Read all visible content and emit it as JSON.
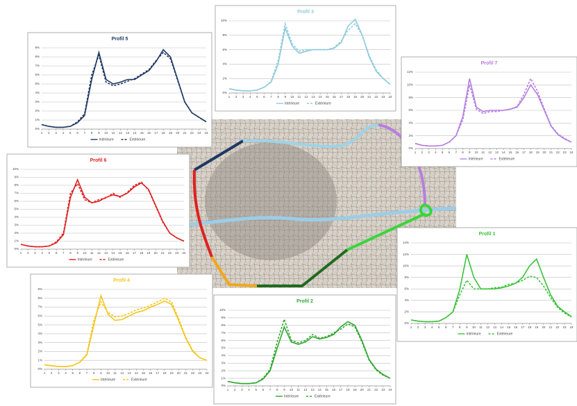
{
  "chart_data": [
    {
      "type": "line",
      "title": "Profil 5",
      "x": [
        1,
        2,
        3,
        4,
        5,
        6,
        7,
        8,
        9,
        10,
        11,
        12,
        13,
        14,
        15,
        16,
        17,
        18,
        19,
        20,
        21,
        22,
        23,
        24
      ],
      "xlim": [
        1,
        24
      ],
      "xticks": [
        1,
        2,
        3,
        4,
        5,
        6,
        7,
        8,
        9,
        10,
        11,
        12,
        13,
        14,
        15,
        16,
        17,
        18,
        19,
        20,
        21,
        22,
        23,
        24
      ],
      "ylim": [
        0,
        9
      ],
      "yticks": [
        {
          "value": 0,
          "label": "0%"
        },
        {
          "value": 1,
          "label": "1%"
        },
        {
          "value": 2,
          "label": "2%"
        },
        {
          "value": 3,
          "label": "3%"
        },
        {
          "value": 4,
          "label": "4%"
        },
        {
          "value": 5,
          "label": "5%"
        },
        {
          "value": 6,
          "label": "6%"
        },
        {
          "value": 7,
          "label": "7%"
        },
        {
          "value": 8,
          "label": "8%"
        },
        {
          "value": 9,
          "label": "9%"
        }
      ],
      "grid": true,
      "series": [
        {
          "name": "Intérieure",
          "color": "#1f3864",
          "linestyle": "solid",
          "values": [
            0.5,
            0.3,
            0.2,
            0.2,
            0.3,
            0.7,
            1.5,
            5.5,
            8.5,
            5.5,
            5,
            5.2,
            5.5,
            5.5,
            6,
            6.5,
            7.5,
            8.8,
            8,
            5.5,
            3,
            1.8,
            1.3,
            0.8
          ]
        },
        {
          "name": "Extérieure",
          "color": "#1f3864",
          "linestyle": "dashed",
          "values": [
            0.5,
            0.3,
            0.2,
            0.2,
            0.3,
            0.8,
            1.7,
            6,
            8.2,
            5.2,
            4.8,
            5,
            5.3,
            5.6,
            6.1,
            6.6,
            7.6,
            8.5,
            7.8,
            5.4,
            3,
            1.8,
            1.3,
            0.8
          ]
        }
      ]
    },
    {
      "type": "line",
      "title": "Profil 3",
      "x": [
        1,
        2,
        3,
        4,
        5,
        6,
        7,
        8,
        9,
        10,
        11,
        12,
        13,
        14,
        15,
        16,
        17,
        18,
        19,
        20,
        21,
        22,
        23,
        24
      ],
      "xlim": [
        1,
        24
      ],
      "xticks": [
        1,
        2,
        3,
        4,
        5,
        6,
        7,
        8,
        9,
        10,
        11,
        12,
        13,
        14,
        15,
        16,
        17,
        18,
        19,
        20,
        21,
        22,
        23,
        24
      ],
      "ylim": [
        0,
        10
      ],
      "yticks": [
        {
          "value": 0,
          "label": "0%"
        },
        {
          "value": 2,
          "label": "2%"
        },
        {
          "value": 4,
          "label": "4%"
        },
        {
          "value": 6,
          "label": "6%"
        },
        {
          "value": 8,
          "label": "8%"
        },
        {
          "value": 10,
          "label": "10%"
        }
      ],
      "grid": true,
      "series": [
        {
          "name": "Intérieure",
          "color": "#8fcbdc",
          "linestyle": "solid",
          "values": [
            0.6,
            0.4,
            0.3,
            0.3,
            0.4,
            0.8,
            1.5,
            4,
            9,
            6.5,
            5.5,
            5.8,
            6,
            6,
            6,
            6.2,
            7,
            9.3,
            10.2,
            8,
            5,
            3,
            2,
            1.2
          ]
        },
        {
          "name": "Extérieure",
          "color": "#8fcbdc",
          "linestyle": "dashed",
          "values": [
            0.6,
            0.4,
            0.3,
            0.3,
            0.4,
            0.8,
            1.6,
            4.5,
            9.6,
            6.8,
            5.8,
            6,
            6,
            6,
            6,
            6.3,
            7.2,
            8.7,
            9.6,
            8,
            5.2,
            3.2,
            2,
            1.2
          ]
        }
      ]
    },
    {
      "type": "line",
      "title": "Profil 7",
      "x": [
        1,
        2,
        3,
        4,
        5,
        6,
        7,
        8,
        9,
        10,
        11,
        12,
        13,
        14,
        15,
        16,
        17,
        18,
        19,
        20,
        21,
        22,
        23,
        24
      ],
      "xlim": [
        1,
        24
      ],
      "xticks": [
        1,
        2,
        3,
        4,
        5,
        6,
        7,
        8,
        9,
        10,
        11,
        12,
        13,
        14,
        15,
        16,
        17,
        18,
        19,
        20,
        21,
        22,
        23,
        24
      ],
      "ylim": [
        0,
        12
      ],
      "yticks": [
        {
          "value": 0,
          "label": "0%"
        },
        {
          "value": 2,
          "label": "2%"
        },
        {
          "value": 4,
          "label": "4%"
        },
        {
          "value": 6,
          "label": "6%"
        },
        {
          "value": 8,
          "label": "8%"
        },
        {
          "value": 10,
          "label": "10%"
        },
        {
          "value": 12,
          "label": "12%"
        }
      ],
      "grid": true,
      "series": [
        {
          "name": "Intérieure",
          "color": "#b57ee0",
          "linestyle": "solid",
          "values": [
            0.8,
            0.5,
            0.4,
            0.4,
            0.5,
            1,
            2,
            5,
            11,
            6.5,
            5.8,
            6,
            6,
            6,
            6.2,
            6.5,
            8,
            10,
            8.5,
            6,
            3.5,
            2.2,
            1.5,
            1
          ]
        },
        {
          "name": "Extérieure",
          "color": "#b57ee0",
          "linestyle": "dashed",
          "values": [
            0.8,
            0.5,
            0.4,
            0.4,
            0.5,
            1,
            2,
            4.5,
            10,
            6.2,
            5.5,
            5.8,
            5.8,
            6,
            6.2,
            6.6,
            8.5,
            11,
            9,
            6.2,
            3.6,
            2.3,
            1.6,
            1
          ]
        }
      ]
    },
    {
      "type": "line",
      "title": "Profil 6",
      "x": [
        1,
        2,
        3,
        4,
        5,
        6,
        7,
        8,
        9,
        10,
        11,
        12,
        13,
        14,
        15,
        16,
        17,
        18,
        19,
        20,
        21,
        22,
        23,
        24
      ],
      "xlim": [
        1,
        24
      ],
      "xticks": [
        1,
        2,
        3,
        4,
        5,
        6,
        7,
        8,
        9,
        10,
        11,
        12,
        13,
        14,
        15,
        16,
        17,
        18,
        19,
        20,
        21,
        22,
        23,
        24
      ],
      "ylim": [
        0,
        10
      ],
      "yticks": [
        {
          "value": 0,
          "label": "0%"
        },
        {
          "value": 1,
          "label": "1%"
        },
        {
          "value": 2,
          "label": "2%"
        },
        {
          "value": 3,
          "label": "3%"
        },
        {
          "value": 4,
          "label": "4%"
        },
        {
          "value": 5,
          "label": "5%"
        },
        {
          "value": 6,
          "label": "6%"
        },
        {
          "value": 7,
          "label": "7%"
        },
        {
          "value": 8,
          "label": "8%"
        },
        {
          "value": 9,
          "label": "9%"
        },
        {
          "value": 10,
          "label": "10%"
        }
      ],
      "grid": true,
      "series": [
        {
          "name": "Intérieure",
          "color": "#e02020",
          "linestyle": "solid",
          "values": [
            0.6,
            0.4,
            0.3,
            0.3,
            0.4,
            0.8,
            1.8,
            6.5,
            8.7,
            6.5,
            5.8,
            6,
            6.5,
            6.8,
            6.6,
            7,
            7.8,
            8.3,
            7.5,
            5.5,
            3.5,
            2,
            1.4,
            1
          ]
        },
        {
          "name": "Extérieure",
          "color": "#e02020",
          "linestyle": "dashed",
          "values": [
            0.6,
            0.4,
            0.3,
            0.3,
            0.4,
            0.9,
            2,
            7,
            8.2,
            6.2,
            5.8,
            6.2,
            6.4,
            7,
            6.5,
            7.1,
            8,
            8.4,
            7.4,
            5.4,
            3.4,
            2,
            1.4,
            1
          ]
        }
      ]
    },
    {
      "type": "line",
      "title": "Profil 1",
      "x": [
        1,
        2,
        3,
        4,
        5,
        6,
        7,
        8,
        9,
        10,
        11,
        12,
        13,
        14,
        15,
        16,
        17,
        18,
        19,
        20,
        21,
        22,
        23,
        24
      ],
      "xlim": [
        1,
        24
      ],
      "xticks": [
        1,
        2,
        3,
        4,
        5,
        6,
        7,
        8,
        9,
        10,
        11,
        12,
        13,
        14,
        15,
        16,
        17,
        18,
        19,
        20,
        21,
        22,
        23,
        24
      ],
      "ylim": [
        0,
        14
      ],
      "yticks": [
        {
          "value": 0,
          "label": "0%"
        },
        {
          "value": 2,
          "label": "2%"
        },
        {
          "value": 4,
          "label": "4%"
        },
        {
          "value": 6,
          "label": "6%"
        },
        {
          "value": 8,
          "label": "8%"
        },
        {
          "value": 10,
          "label": "10%"
        },
        {
          "value": 12,
          "label": "12%"
        },
        {
          "value": 14,
          "label": "14%"
        }
      ],
      "grid": true,
      "series": [
        {
          "name": "Intérieure",
          "color": "#39c239",
          "linestyle": "solid",
          "values": [
            0.6,
            0.4,
            0.3,
            0.3,
            0.4,
            1,
            2,
            6,
            12,
            8,
            6,
            6,
            6,
            6.2,
            6.5,
            7,
            8,
            10,
            11.2,
            8,
            5,
            3,
            2,
            1.2
          ]
        },
        {
          "name": "Extérieure",
          "color": "#39c239",
          "linestyle": "dashed",
          "values": [
            0.6,
            0.4,
            0.3,
            0.3,
            0.4,
            1,
            2,
            5,
            7.5,
            6,
            6,
            6,
            6.2,
            6.3,
            6.8,
            7,
            7.5,
            8.2,
            8,
            6.5,
            4.5,
            2.8,
            1.8,
            1.1
          ]
        }
      ]
    },
    {
      "type": "line",
      "title": "Profil 4",
      "x": [
        1,
        2,
        3,
        4,
        5,
        6,
        7,
        8,
        9,
        10,
        11,
        12,
        13,
        14,
        15,
        16,
        17,
        18,
        19,
        20,
        21,
        22,
        23,
        24
      ],
      "xlim": [
        1,
        24
      ],
      "xticks": [
        1,
        2,
        3,
        4,
        5,
        6,
        7,
        8,
        9,
        10,
        11,
        12,
        13,
        14,
        15,
        16,
        17,
        18,
        19,
        20,
        21,
        22,
        23,
        24
      ],
      "ylim": [
        0,
        9
      ],
      "yticks": [
        {
          "value": 0,
          "label": "0%"
        },
        {
          "value": 1,
          "label": "1%"
        },
        {
          "value": 2,
          "label": "2%"
        },
        {
          "value": 3,
          "label": "3%"
        },
        {
          "value": 4,
          "label": "4%"
        },
        {
          "value": 5,
          "label": "5%"
        },
        {
          "value": 6,
          "label": "6%"
        },
        {
          "value": 7,
          "label": "7%"
        },
        {
          "value": 8,
          "label": "8%"
        },
        {
          "value": 9,
          "label": "9%"
        }
      ],
      "grid": true,
      "series": [
        {
          "name": "Intérieure",
          "color": "#f5c518",
          "linestyle": "solid",
          "values": [
            0.5,
            0.4,
            0.3,
            0.3,
            0.4,
            0.8,
            1.6,
            5,
            8.3,
            6.2,
            5.5,
            5.6,
            6,
            6.4,
            6.6,
            7,
            7.3,
            7.7,
            7.3,
            5.5,
            3.5,
            2,
            1.3,
            1
          ]
        },
        {
          "name": "Extérieure",
          "color": "#f5c518",
          "linestyle": "dashed",
          "values": [
            0.5,
            0.4,
            0.3,
            0.3,
            0.4,
            0.8,
            1.7,
            5.5,
            7.6,
            6.4,
            5.9,
            6,
            6.3,
            6.7,
            6.9,
            7.2,
            7.6,
            8,
            7.6,
            5.7,
            3.6,
            2.1,
            1.3,
            1
          ]
        }
      ]
    },
    {
      "type": "line",
      "title": "Profil 2",
      "x": [
        1,
        2,
        3,
        4,
        5,
        6,
        7,
        8,
        9,
        10,
        11,
        12,
        13,
        14,
        15,
        16,
        17,
        18,
        19,
        20,
        21,
        22,
        23,
        24
      ],
      "xlim": [
        1,
        24
      ],
      "xticks": [
        1,
        2,
        3,
        4,
        5,
        6,
        7,
        8,
        9,
        10,
        11,
        12,
        13,
        14,
        15,
        16,
        17,
        18,
        19,
        20,
        21,
        22,
        23,
        24
      ],
      "ylim": [
        0,
        10
      ],
      "yticks": [
        {
          "value": 0,
          "label": "0%"
        },
        {
          "value": 1,
          "label": "1%"
        },
        {
          "value": 2,
          "label": "2%"
        },
        {
          "value": 3,
          "label": "3%"
        },
        {
          "value": 4,
          "label": "4%"
        },
        {
          "value": 5,
          "label": "5%"
        },
        {
          "value": 6,
          "label": "6%"
        },
        {
          "value": 7,
          "label": "7%"
        },
        {
          "value": 8,
          "label": "8%"
        },
        {
          "value": 9,
          "label": "9%"
        },
        {
          "value": 10,
          "label": "10%"
        }
      ],
      "grid": true,
      "series": [
        {
          "name": "Intérieure",
          "color": "#2ea82e",
          "linestyle": "solid",
          "values": [
            0.6,
            0.4,
            0.3,
            0.3,
            0.4,
            0.9,
            2,
            5,
            7.8,
            5.8,
            5.5,
            5.8,
            6.5,
            6.2,
            6.4,
            6.8,
            7.8,
            8.5,
            8,
            6,
            3.5,
            2.2,
            1.5,
            1
          ]
        },
        {
          "name": "Extérieure",
          "color": "#2ea82e",
          "linestyle": "dashed",
          "values": [
            0.6,
            0.4,
            0.3,
            0.3,
            0.4,
            1,
            2.2,
            5.8,
            8.8,
            6,
            5.7,
            6,
            6.8,
            6.3,
            6.5,
            7,
            7.5,
            8.2,
            7.8,
            5.8,
            3.4,
            2.1,
            1.4,
            1
          ]
        }
      ]
    }
  ]
}
